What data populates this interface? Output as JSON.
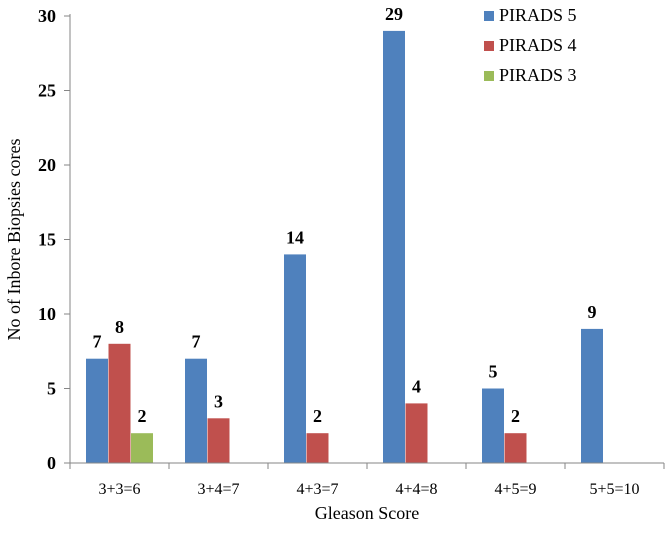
{
  "chart_data": {
    "type": "bar",
    "title": "",
    "xlabel": "Gleason Score",
    "ylabel": "No of  Inbore  Biopsies cores",
    "ylim": [
      0,
      30
    ],
    "yticks": [
      0,
      5,
      10,
      15,
      20,
      25,
      30
    ],
    "grid": false,
    "legend_position": "top-right",
    "categories": [
      "3+3=6",
      "3+4=7",
      "4+3=7",
      "4+4=8",
      "4+5=9",
      "5+5=10"
    ],
    "series": [
      {
        "name": "PIRADS 5",
        "color": "#4F81BD",
        "values": [
          7,
          7,
          14,
          29,
          5,
          9
        ]
      },
      {
        "name": "PIRADS 4",
        "color": "#C0504D",
        "values": [
          8,
          3,
          2,
          4,
          2,
          null
        ]
      },
      {
        "name": "PIRADS 3",
        "color": "#9BBB59",
        "values": [
          2,
          null,
          null,
          null,
          null,
          null
        ]
      }
    ]
  }
}
